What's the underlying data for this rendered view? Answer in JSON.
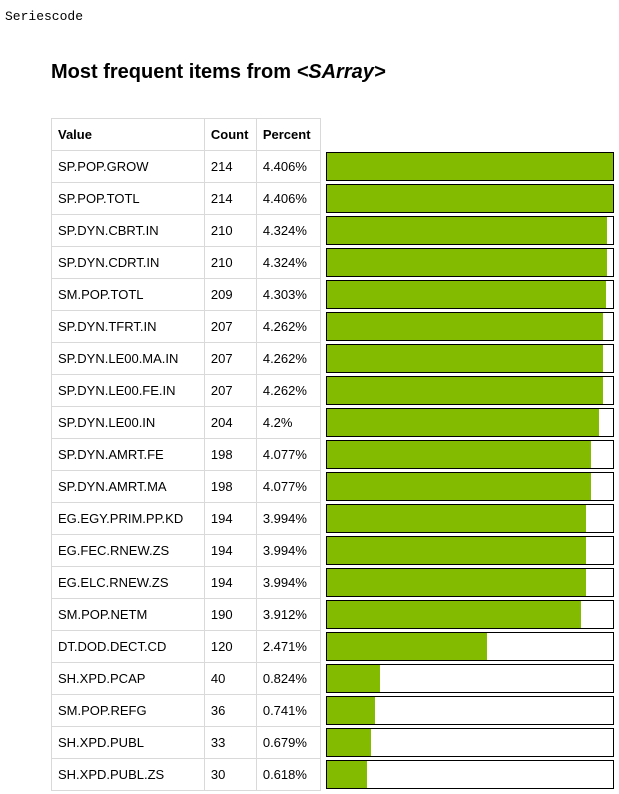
{
  "header": {
    "series_code": "Seriescode",
    "title_prefix": "Most frequent items from ",
    "title_object": "<SArray>"
  },
  "table": {
    "columns": [
      "Value",
      "Count",
      "Percent"
    ],
    "rows": [
      {
        "value": "SP.POP.GROW",
        "count": "214",
        "percent": "4.406%"
      },
      {
        "value": "SP.POP.TOTL",
        "count": "214",
        "percent": "4.406%"
      },
      {
        "value": "SP.DYN.CBRT.IN",
        "count": "210",
        "percent": "4.324%"
      },
      {
        "value": "SP.DYN.CDRT.IN",
        "count": "210",
        "percent": "4.324%"
      },
      {
        "value": "SM.POP.TOTL",
        "count": "209",
        "percent": "4.303%"
      },
      {
        "value": "SP.DYN.TFRT.IN",
        "count": "207",
        "percent": "4.262%"
      },
      {
        "value": "SP.DYN.LE00.MA.IN",
        "count": "207",
        "percent": "4.262%"
      },
      {
        "value": "SP.DYN.LE00.FE.IN",
        "count": "207",
        "percent": "4.262%"
      },
      {
        "value": "SP.DYN.LE00.IN",
        "count": "204",
        "percent": "4.2%"
      },
      {
        "value": "SP.DYN.AMRT.FE",
        "count": "198",
        "percent": "4.077%"
      },
      {
        "value": "SP.DYN.AMRT.MA",
        "count": "198",
        "percent": "4.077%"
      },
      {
        "value": "EG.EGY.PRIM.PP.KD",
        "count": "194",
        "percent": "3.994%"
      },
      {
        "value": "EG.FEC.RNEW.ZS",
        "count": "194",
        "percent": "3.994%"
      },
      {
        "value": "EG.ELC.RNEW.ZS",
        "count": "194",
        "percent": "3.994%"
      },
      {
        "value": "SM.POP.NETM",
        "count": "190",
        "percent": "3.912%"
      },
      {
        "value": "DT.DOD.DECT.CD",
        "count": "120",
        "percent": "2.471%"
      },
      {
        "value": "SH.XPD.PCAP",
        "count": "40",
        "percent": "0.824%"
      },
      {
        "value": "SM.POP.REFG",
        "count": "36",
        "percent": "0.741%"
      },
      {
        "value": "SH.XPD.PUBL",
        "count": "33",
        "percent": "0.679%"
      },
      {
        "value": "SH.XPD.PUBL.ZS",
        "count": "30",
        "percent": "0.618%"
      }
    ]
  },
  "colors": {
    "bar_fill": "#82bb00"
  }
}
